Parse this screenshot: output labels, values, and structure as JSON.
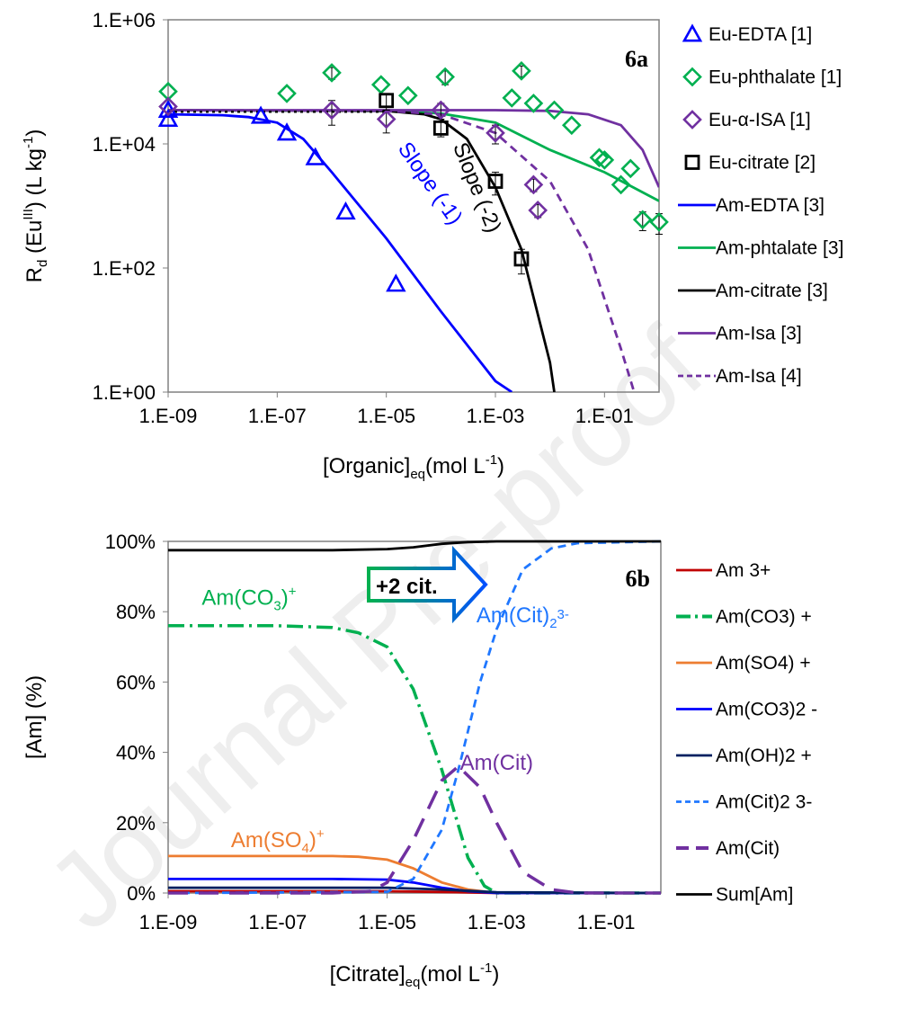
{
  "watermark": "Journal Pre-proof",
  "chart_data": [
    {
      "panel": "6a",
      "type": "scatter+line",
      "xscale": "log",
      "yscale": "log",
      "xlim": [
        1e-09,
        1
      ],
      "ylim": [
        1,
        1000000
      ],
      "xlabel": {
        "base": "[Organic]",
        "sub": "eq",
        "rest": "(mol L",
        "sup": "-1",
        "end": ")"
      },
      "ylabel": {
        "base": "R",
        "sub": "d",
        "mid": " (Eu",
        "sup": "III",
        "rest": ") (L kg",
        "sup2": "-1",
        "end": ")"
      },
      "xticks": [
        {
          "v": 1e-09,
          "label": "1.E-09"
        },
        {
          "v": 1e-07,
          "label": "1.E-07"
        },
        {
          "v": 1e-05,
          "label": "1.E-05"
        },
        {
          "v": 0.001,
          "label": "1.E-03"
        },
        {
          "v": 0.1,
          "label": "1.E-01"
        }
      ],
      "yticks": [
        {
          "v": 1,
          "label": "1.E+00"
        },
        {
          "v": 100,
          "label": "1.E+02"
        },
        {
          "v": 10000,
          "label": "1.E+04"
        },
        {
          "v": 1000000,
          "label": "1.E+06"
        }
      ],
      "grid": false,
      "legend_position": "right",
      "annotations": [
        {
          "text": "Slope (-1)",
          "x": 5e-05,
          "y": 2000,
          "color": "#0000ff",
          "rotate": 55
        },
        {
          "text": "Slope (-2)",
          "x": 0.00035,
          "y": 1800,
          "color": "#000000",
          "rotate": 68
        }
      ],
      "points": [
        {
          "name": "Eu-EDTA [1]",
          "marker": "triangle",
          "color": "#0000ff",
          "x": [
            1e-09,
            1e-09,
            5e-08,
            1.5e-07,
            5e-07,
            1.8e-06,
            1.5e-05
          ],
          "y": [
            35000,
            25000,
            28000,
            15000,
            6000,
            800,
            55
          ]
        },
        {
          "name": "Eu-phthalate [1]",
          "marker": "diamond",
          "color": "#00b050",
          "x": [
            1e-09,
            1.5e-07,
            1e-06,
            8e-06,
            2.5e-05,
            0.00012,
            0.003,
            0.002,
            0.005,
            0.012,
            0.025,
            0.08,
            0.1,
            0.2,
            0.3,
            0.5,
            1
          ],
          "y": [
            70000,
            65000,
            140000,
            90000,
            60000,
            120000,
            150000,
            55000,
            45000,
            35000,
            20000,
            6000,
            5500,
            2200,
            4000,
            600,
            550
          ],
          "err": [
            0,
            0,
            30000,
            0,
            0,
            30000,
            30000,
            0,
            0,
            0,
            0,
            0,
            0,
            0,
            0,
            200,
            200
          ]
        },
        {
          "name": "Eu-α-ISA [1]",
          "marker": "diamond",
          "color": "#7030a0",
          "x": [
            1e-09,
            1e-06,
            1e-05,
            0.0001,
            0.001,
            0.005,
            0.006
          ],
          "y": [
            40000,
            35000,
            25000,
            35000,
            15000,
            2200,
            850
          ],
          "err": [
            0,
            15000,
            10000,
            10000,
            5000,
            500,
            200
          ]
        },
        {
          "name": "Eu-citrate [2]",
          "marker": "square",
          "color": "#000000",
          "x": [
            1e-05,
            0.0001,
            0.001,
            0.003
          ],
          "y": [
            50000,
            18000,
            2500,
            140
          ],
          "err": [
            15000,
            5000,
            1000,
            60
          ]
        }
      ],
      "lines": [
        {
          "name": "Am-EDTA [3]",
          "color": "#0000ff",
          "dash": "solid",
          "x": [
            1e-09,
            1e-08,
            3e-08,
            1e-07,
            3e-07,
            1e-06,
            1e-05,
            0.0001,
            0.001,
            0.002
          ],
          "y": [
            30000,
            29000,
            27000,
            22000,
            12000,
            3500,
            300,
            20,
            1.5,
            1
          ]
        },
        {
          "name": "Am-phtalate [3]",
          "color": "#00b050",
          "dash": "solid",
          "x": [
            1e-09,
            1e-05,
            0.0001,
            0.001,
            0.01,
            0.1,
            1
          ],
          "y": [
            35000,
            34000,
            31000,
            22000,
            8000,
            3500,
            1200
          ]
        },
        {
          "name": "Am-citrate [3]",
          "color": "#000000",
          "dash": "solid",
          "x": [
            1e-09,
            1e-05,
            5e-05,
            0.0001,
            0.0003,
            0.001,
            0.003,
            0.01,
            0.012
          ],
          "y": [
            35000,
            34000,
            30000,
            25000,
            12000,
            2000,
            200,
            3,
            1
          ]
        },
        {
          "name": "Am-Isa [3]",
          "color": "#7030a0",
          "dash": "solid",
          "x": [
            1e-09,
            0.001,
            0.01,
            0.05,
            0.2,
            0.5,
            1
          ],
          "y": [
            35000,
            35000,
            34000,
            30000,
            20000,
            8000,
            2000
          ]
        },
        {
          "name": "Am-Isa [4]",
          "color": "#7030a0",
          "dash": "dash",
          "x": [
            1e-09,
            1e-05,
            0.0001,
            0.001,
            0.01,
            0.05,
            0.2,
            0.35
          ],
          "y": [
            35000,
            34000,
            30000,
            15000,
            2500,
            200,
            5,
            1
          ]
        }
      ]
    },
    {
      "panel": "6b",
      "type": "line",
      "xscale": "log",
      "xlim": [
        1e-09,
        1
      ],
      "ylim": [
        0,
        100
      ],
      "xlabel": {
        "base": "[Citrate]",
        "sub": "eq",
        "rest": "(mol L",
        "sup": "-1",
        "end": ")"
      },
      "ylabel": "[Am] (%)",
      "xticks": [
        {
          "v": 1e-09,
          "label": "1.E-09"
        },
        {
          "v": 1e-07,
          "label": "1.E-07"
        },
        {
          "v": 1e-05,
          "label": "1.E-05"
        },
        {
          "v": 0.001,
          "label": "1.E-03"
        },
        {
          "v": 0.1,
          "label": "1.E-01"
        }
      ],
      "yticks": [
        {
          "v": 0,
          "label": "0%"
        },
        {
          "v": 20,
          "label": "20%"
        },
        {
          "v": 40,
          "label": "40%"
        },
        {
          "v": 60,
          "label": "60%"
        },
        {
          "v": 80,
          "label": "80%"
        },
        {
          "v": 100,
          "label": "100%"
        }
      ],
      "grid": false,
      "legend_position": "right",
      "arrow_label": "+2 cit.",
      "annotations": [
        {
          "base": "Am(CO",
          "sub": "3",
          "end": ")",
          "sup": "+",
          "x": 3e-08,
          "y": 82,
          "color": "#00b050"
        },
        {
          "base": "Am(Cit)",
          "sub": "2",
          "end": "",
          "sup": "3-",
          "x": 0.003,
          "y": 77,
          "color": "#1f77ff"
        },
        {
          "base": "Am(Cit)",
          "sub": "",
          "end": "",
          "sup": "",
          "x": 0.001,
          "y": 35,
          "color": "#7030a0"
        },
        {
          "base": "Am(SO",
          "sub": "4",
          "end": ")",
          "sup": "+",
          "x": 1e-07,
          "y": 13,
          "color": "#ed7d31"
        }
      ],
      "series": [
        {
          "name": "Am 3+",
          "color": "#c00000",
          "dash": "solid",
          "x": [
            1e-09,
            1e-05,
            0.0001,
            0.001,
            1
          ],
          "y": [
            0.5,
            0.5,
            0.3,
            0,
            0
          ]
        },
        {
          "name": "Am(CO3) +",
          "color": "#00b050",
          "dash": "dashdot",
          "x": [
            1e-09,
            1e-07,
            1e-06,
            3e-06,
            1e-05,
            3e-05,
            0.0001,
            0.0003,
            0.0006,
            0.001,
            1
          ],
          "y": [
            76,
            76,
            75.5,
            74,
            70,
            58,
            35,
            10,
            2,
            0,
            0
          ]
        },
        {
          "name": "Am(SO4) +",
          "color": "#ed7d31",
          "dash": "solid",
          "x": [
            1e-09,
            1e-06,
            3e-06,
            1e-05,
            3e-05,
            0.0001,
            0.0003,
            0.001,
            1
          ],
          "y": [
            10.5,
            10.5,
            10.3,
            9.5,
            7,
            3,
            1,
            0,
            0
          ]
        },
        {
          "name": "Am(CO3)2 -",
          "color": "#0000ff",
          "dash": "solid",
          "x": [
            1e-09,
            1e-06,
            1e-05,
            3e-05,
            0.0001,
            0.0003,
            0.001,
            1
          ],
          "y": [
            4,
            4,
            3.8,
            3,
            1.5,
            0.5,
            0,
            0
          ]
        },
        {
          "name": "Am(OH)2 +",
          "color": "#002060",
          "dash": "solid",
          "x": [
            1e-09,
            1e-05,
            0.0001,
            0.001,
            1
          ],
          "y": [
            1.5,
            1.5,
            1,
            0.2,
            0
          ]
        },
        {
          "name": "Am(Cit)2 3-",
          "color": "#1f77ff",
          "dash": "dash",
          "x": [
            1e-09,
            1e-05,
            3e-05,
            0.0001,
            0.0002,
            0.0005,
            0.001,
            0.003,
            0.01,
            0.03,
            1
          ],
          "y": [
            0,
            0.3,
            4,
            18,
            35,
            60,
            75,
            92,
            98,
            99.5,
            100
          ]
        },
        {
          "name": "Am(Cit)",
          "color": "#7030a0",
          "dash": "longdash",
          "x": [
            1e-09,
            1e-06,
            5e-06,
            1e-05,
            3e-05,
            0.0001,
            0.0002,
            0.0005,
            0.001,
            0.003,
            0.01,
            0.03,
            1
          ],
          "y": [
            0,
            0,
            0.5,
            3,
            15,
            32,
            36,
            30,
            20,
            6,
            1,
            0,
            0
          ]
        },
        {
          "name": "Sum[Am]",
          "color": "#000000",
          "dash": "solid",
          "x": [
            1e-09,
            1e-06,
            1e-05,
            3e-05,
            0.0001,
            0.0003,
            0.001,
            1
          ],
          "y": [
            97.5,
            97.5,
            97.8,
            98.3,
            99.3,
            99.8,
            100,
            100
          ]
        }
      ]
    }
  ]
}
